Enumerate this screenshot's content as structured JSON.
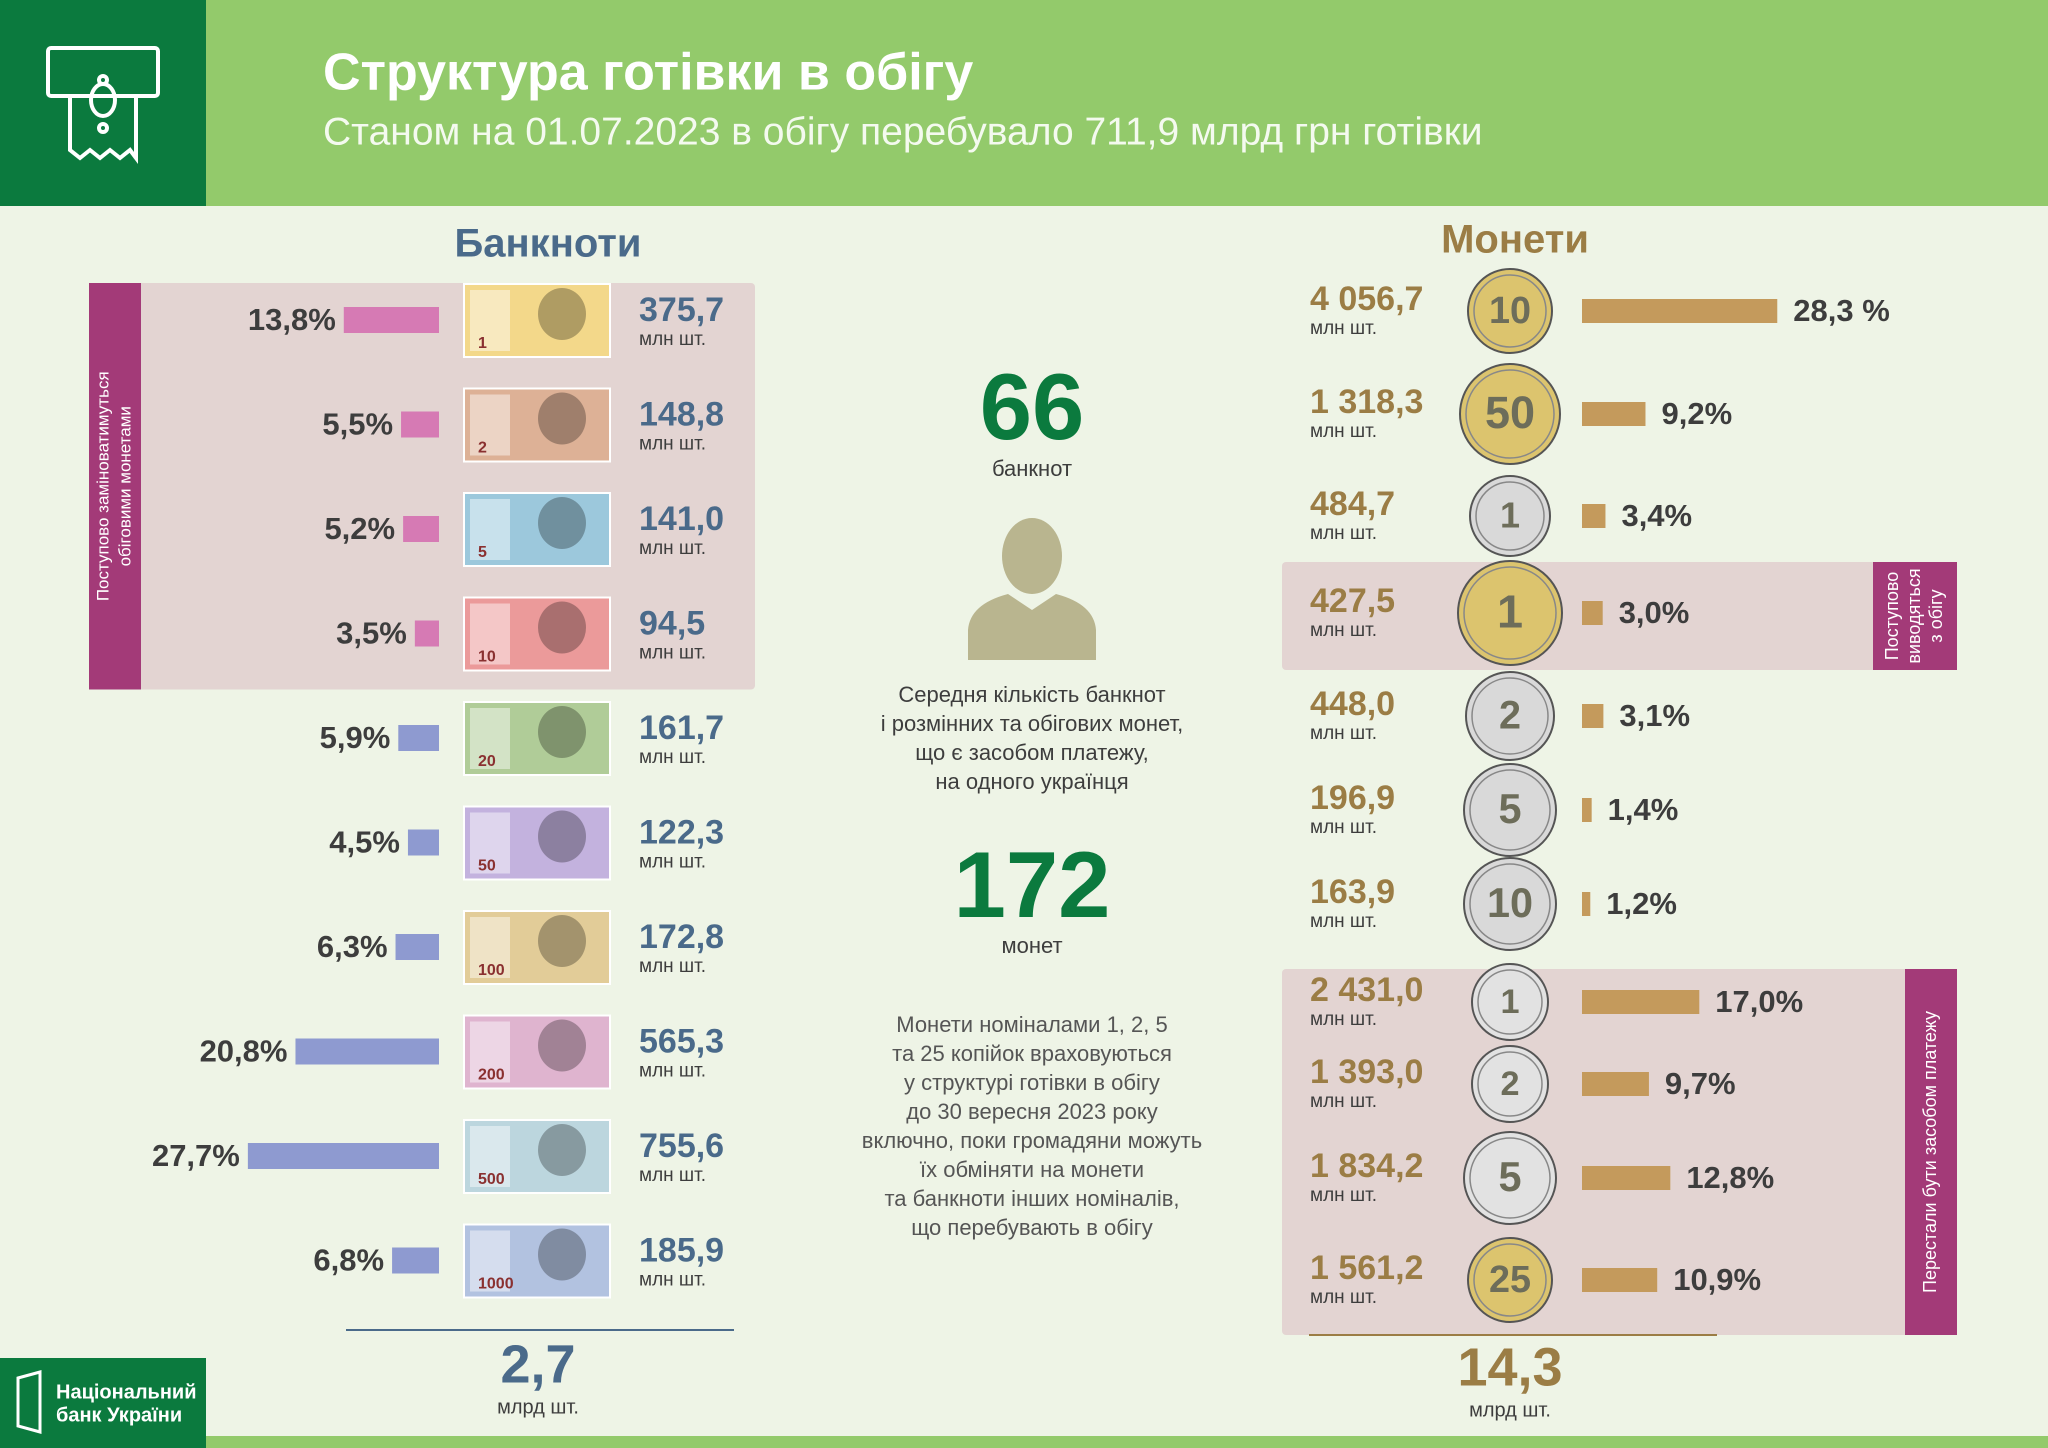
{
  "header": {
    "title": "Структура готівки в обігу",
    "subtitle": "Станом на 01.07.2023 в обігу перебувало 711,9 млрд грн готівки",
    "logo": [
      "Національний",
      "банк України"
    ]
  },
  "unit": "млн шт.",
  "total_unit": "млрд шт.",
  "banknotes": {
    "title": "Банкноти",
    "total": "2,7",
    "groups": [
      {
        "label": [
          "Поступово  заміноватимуться",
          "обіговими монетами"
        ],
        "items": [
          {
            "denomination": "1",
            "share": 13.8,
            "share_label": "13,8%",
            "count": "375,7",
            "color": "#d67ab4",
            "note_color": "#f3d88a"
          },
          {
            "denomination": "2",
            "share": 5.5,
            "share_label": "5,5%",
            "count": "148,8",
            "color": "#d67ab4",
            "note_color": "#ddb196"
          },
          {
            "denomination": "5",
            "share": 5.2,
            "share_label": "5,2%",
            "count": "141,0",
            "color": "#d67ab4",
            "note_color": "#9cc8dc"
          },
          {
            "denomination": "10",
            "share": 3.5,
            "share_label": "3,5%",
            "count": "94,5",
            "color": "#d67ab4",
            "note_color": "#eb9a9a"
          }
        ]
      },
      {
        "items": [
          {
            "denomination": "20",
            "share": 5.9,
            "share_label": "5,9%",
            "count": "161,7",
            "color": "#8e9ad0",
            "note_color": "#b0cc98"
          },
          {
            "denomination": "50",
            "share": 4.5,
            "share_label": "4,5%",
            "count": "122,3",
            "color": "#8e9ad0",
            "note_color": "#c3b2de"
          },
          {
            "denomination": "100",
            "share": 6.3,
            "share_label": "6,3%",
            "count": "172,8",
            "color": "#8e9ad0",
            "note_color": "#e2cc98"
          },
          {
            "denomination": "200",
            "share": 20.8,
            "share_label": "20,8%",
            "count": "565,3",
            "color": "#8e9ad0",
            "note_color": "#dfb4cf"
          },
          {
            "denomination": "500",
            "share": 27.7,
            "share_label": "27,7%",
            "count": "755,6",
            "color": "#8e9ad0",
            "note_color": "#bcd6de"
          },
          {
            "denomination": "1000",
            "share": 6.8,
            "share_label": "6,8%",
            "count": "185,9",
            "color": "#8e9ad0",
            "note_color": "#b2c2e0"
          }
        ]
      }
    ]
  },
  "coins": {
    "title": "Монети",
    "total": "14,3",
    "groups": [
      {
        "items": [
          {
            "denomination": "10",
            "share": 28.3,
            "share_label": "28,3 %",
            "count": "4 056,7",
            "color": "#c49a5c",
            "coin_color": "#dcc46e"
          },
          {
            "denomination": "50",
            "share": 9.2,
            "share_label": "9,2%",
            "count": "1 318,3",
            "color": "#c49a5c",
            "coin_color": "#dcc46e"
          },
          {
            "denomination": "1",
            "share": 3.4,
            "share_label": "3,4%",
            "count": "484,7",
            "color": "#c49a5c",
            "coin_color": "#d9d9d9"
          }
        ]
      },
      {
        "label": [
          "Поступово",
          "виводяться",
          "з обігу"
        ],
        "items": [
          {
            "denomination": "1",
            "share": 3.0,
            "share_label": "3,0%",
            "count": "427,5",
            "color": "#c49a5c",
            "coin_color": "#dcc46e"
          }
        ]
      },
      {
        "items": [
          {
            "denomination": "2",
            "share": 3.1,
            "share_label": "3,1%",
            "count": "448,0",
            "color": "#c49a5c",
            "coin_color": "#d9d9d9"
          },
          {
            "denomination": "5",
            "share": 1.4,
            "share_label": "1,4%",
            "count": "196,9",
            "color": "#c49a5c",
            "coin_color": "#d9d9d9"
          },
          {
            "denomination": "10",
            "share": 1.2,
            "share_label": "1,2%",
            "count": "163,9",
            "color": "#c49a5c",
            "coin_color": "#d9d9d9"
          }
        ]
      },
      {
        "label": [
          "Перестали бути засобом платежу"
        ],
        "items": [
          {
            "denomination": "1",
            "share": 17.0,
            "share_label": "17,0%",
            "count": "2 431,0",
            "color": "#c49a5c",
            "coin_color": "#e2e2e2"
          },
          {
            "denomination": "2",
            "share": 9.7,
            "share_label": "9,7%",
            "count": "1 393,0",
            "color": "#c49a5c",
            "coin_color": "#e2e2e2"
          },
          {
            "denomination": "5",
            "share": 12.8,
            "share_label": "12,8%",
            "count": "1 834,2",
            "color": "#c49a5c",
            "coin_color": "#e2e2e2"
          },
          {
            "denomination": "25",
            "share": 10.9,
            "share_label": "10,9%",
            "count": "1 561,2",
            "color": "#c49a5c",
            "coin_color": "#dcc46e"
          }
        ]
      }
    ]
  },
  "center": {
    "banknotes_per_person": 66,
    "banknotes_word": "банкнот",
    "coins_per_person": 172,
    "coins_word": "монет",
    "description": [
      "Середня кількість банкнот",
      "і розмінних та обігових монет,",
      "що є засобом платежу,",
      "на одного українця"
    ],
    "note": [
      "Монети  номіналами 1, 2, 5",
      "та 25 копійок враховуються",
      "у структурі готівки в обігу",
      "до 30 вересня 2023 року",
      "включно, поки громадяни можуть",
      "їх обміняти на монети",
      "та банкноти інших номіналів,",
      "що перебувають в обігу"
    ]
  }
}
